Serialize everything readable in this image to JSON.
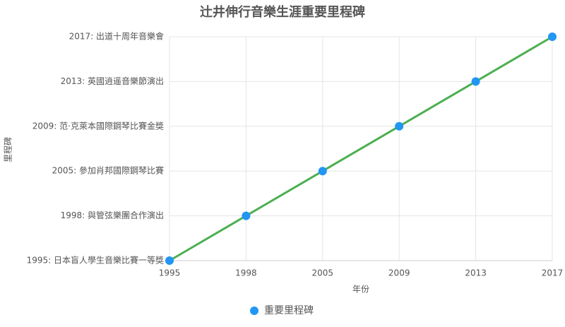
{
  "chart_data": {
    "type": "line",
    "title": "辻井伸行音樂生涯重要里程碑",
    "x_label": "年份",
    "y_label": "里程碑",
    "categories": [
      "1995",
      "1998",
      "2005",
      "2009",
      "2013",
      "2017"
    ],
    "yticks": [
      "1995: 日本盲人學生音樂比賽一等獎",
      "1998: 與管弦樂團合作演出",
      "2005: 參加肖邦國際鋼琴比賽",
      "2009: 范·克萊本國際鋼琴比賽金獎",
      "2013: 英國逍遥音樂節演出",
      "2017: 出道十周年音樂會"
    ],
    "series": [
      {
        "name": "重要里程碑",
        "color": "#2196f3",
        "line_color": "#4caf50",
        "values": [
          "1995: 日本盲人學生音樂比賽一等獎",
          "1998: 與管弦樂團合作演出",
          "2005: 參加肖邦國際鋼琴比賽",
          "2009: 范·克萊本國際鋼琴比賽金獎",
          "2013: 英國逍遥音樂節演出",
          "2017: 出道十周年音樂會"
        ]
      }
    ],
    "grid": true,
    "legend": "bottom"
  }
}
